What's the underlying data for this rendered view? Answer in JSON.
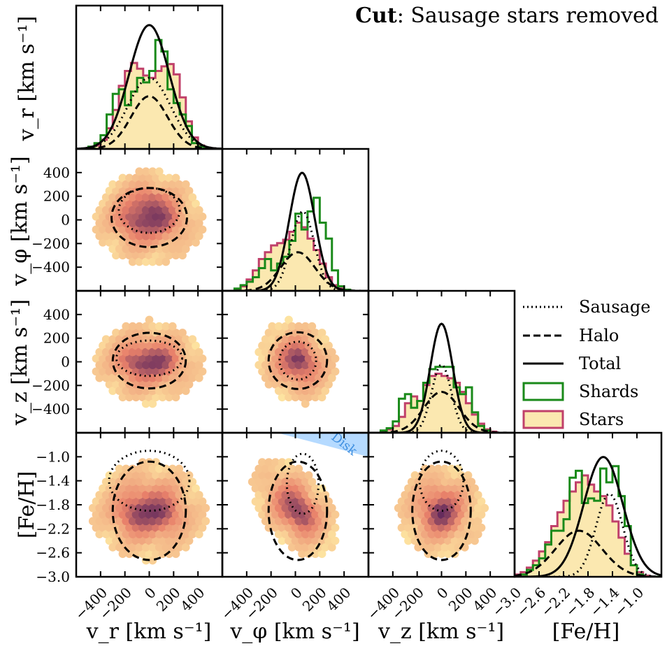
{
  "title": {
    "bold": "Cut",
    "rest": ": Sausage stars removed"
  },
  "axis_labels": {
    "vr": "v_r [km s⁻¹]",
    "vphi": "v_φ [km s⁻¹]",
    "vz": "v_z [km s⁻¹]",
    "feh": "[Fe/H]"
  },
  "legend": {
    "sausage": "Sausage",
    "halo": "Halo",
    "total": "Total",
    "shards": "Shards",
    "stars": "Stars"
  },
  "disk_label": "Disk",
  "colors": {
    "shards": "#1a8a1a",
    "stars_edge": "#c0406a",
    "stars_fill": "#fbe8b0",
    "disk": "#a8d4ff",
    "disk_text": "#3f8fe0",
    "density_low": "#fde3a0",
    "density_mid": "#e8806a",
    "density_high": "#4a1a5a"
  },
  "chart_data": {
    "type": "corner",
    "variables": [
      "vr",
      "vphi",
      "vz",
      "feh"
    ],
    "ranges": {
      "vr": [
        -600,
        600
      ],
      "vphi": [
        -600,
        600
      ],
      "vz": [
        -600,
        600
      ],
      "feh": [
        -3.0,
        -0.6
      ]
    },
    "ticks": {
      "vr": [
        -400,
        -200,
        0,
        200,
        400
      ],
      "vphi": [
        -400,
        -200,
        0,
        200,
        400
      ],
      "vz": [
        -400,
        -200,
        0,
        200,
        400
      ],
      "feh": [
        -3.0,
        -2.6,
        -2.2,
        -1.8,
        -1.4,
        -1.0
      ]
    },
    "tick_labels": {
      "vr": [
        "−400",
        "−200",
        "0",
        "200",
        "400"
      ],
      "vphi": [
        "−400",
        "−200",
        "0",
        "200",
        "400"
      ],
      "vz": [
        "−400",
        "−200",
        "0",
        "200",
        "400"
      ],
      "feh": [
        "−3.0",
        "−2.6",
        "−2.2",
        "−1.8",
        "−1.4",
        "−1.0"
      ]
    },
    "left_tick_labels": {
      "vphi": [
        "−400",
        "−200",
        "0",
        "200",
        "400"
      ],
      "vz": [
        "−400",
        "−200",
        "0",
        "200",
        "400"
      ],
      "feh": [
        "−3.0",
        "−2.6",
        "−2.2",
        "−1.8",
        "−1.4",
        "−1.0"
      ]
    },
    "marginals": {
      "vr": {
        "bin_edges": [
          -600,
          -550,
          -500,
          -450,
          -400,
          -350,
          -300,
          -250,
          -200,
          -150,
          -100,
          -50,
          0,
          50,
          100,
          150,
          200,
          250,
          300,
          350,
          400,
          450,
          500,
          550,
          600
        ],
        "stars": [
          0,
          0,
          1,
          3,
          8,
          18,
          34,
          55,
          68,
          75,
          70,
          64,
          62,
          68,
          72,
          74,
          65,
          45,
          24,
          10,
          3,
          1,
          0,
          0
        ],
        "shards": [
          0,
          0,
          2,
          5,
          12,
          30,
          48,
          52,
          38,
          50,
          62,
          58,
          68,
          95,
          85,
          52,
          40,
          30,
          20,
          5,
          2,
          0,
          0,
          0
        ],
        "sausage": {
          "amp": 62,
          "mu": 0,
          "sigma": 175
        },
        "halo": {
          "amp": 46,
          "mu": 0,
          "sigma": 150
        },
        "total": {
          "amp": 108,
          "mu": 0,
          "sigma": 165
        }
      },
      "vphi": {
        "bin_edges": [
          -600,
          -550,
          -500,
          -450,
          -400,
          -350,
          -300,
          -250,
          -200,
          -150,
          -100,
          -50,
          0,
          50,
          100,
          150,
          200,
          250,
          300,
          350,
          400,
          450,
          500,
          550,
          600
        ],
        "stars": [
          0,
          0,
          1,
          4,
          10,
          18,
          28,
          34,
          40,
          42,
          45,
          52,
          60,
          56,
          46,
          36,
          24,
          12,
          5,
          2,
          1,
          0,
          0,
          0
        ],
        "shards": [
          0,
          0,
          2,
          5,
          8,
          12,
          20,
          28,
          18,
          24,
          30,
          44,
          68,
          54,
          70,
          82,
          60,
          46,
          18,
          4,
          1,
          0,
          0,
          0
        ],
        "sausage": {
          "amp": 70,
          "mu": 60,
          "sigma": 95
        },
        "halo": {
          "amp": 34,
          "mu": 20,
          "sigma": 140
        },
        "total": {
          "amp": 104,
          "mu": 55,
          "sigma": 105
        }
      },
      "vz": {
        "bin_edges": [
          -600,
          -550,
          -500,
          -450,
          -400,
          -350,
          -300,
          -250,
          -200,
          -150,
          -100,
          -50,
          0,
          50,
          100,
          150,
          200,
          250,
          300,
          350,
          400,
          450,
          500,
          550,
          600
        ],
        "stars": [
          0,
          0,
          1,
          3,
          6,
          14,
          26,
          32,
          28,
          42,
          50,
          52,
          50,
          48,
          44,
          36,
          26,
          16,
          8,
          3,
          1,
          0,
          0,
          0
        ],
        "shards": [
          0,
          0,
          2,
          4,
          10,
          30,
          34,
          22,
          28,
          44,
          56,
          58,
          58,
          58,
          40,
          34,
          40,
          18,
          6,
          2,
          0,
          0,
          0,
          0
        ],
        "sausage": {
          "amp": 60,
          "mu": 0,
          "sigma": 80
        },
        "halo": {
          "amp": 36,
          "mu": 0,
          "sigma": 145
        },
        "total": {
          "amp": 96,
          "mu": 0,
          "sigma": 92
        }
      },
      "feh": {
        "bin_edges": [
          -3.0,
          -2.9,
          -2.8,
          -2.7,
          -2.6,
          -2.5,
          -2.4,
          -2.3,
          -2.2,
          -2.1,
          -2.0,
          -1.9,
          -1.8,
          -1.7,
          -1.6,
          -1.5,
          -1.4,
          -1.3,
          -1.2,
          -1.1,
          -1.0,
          -0.9,
          -0.8,
          -0.7,
          -0.6
        ],
        "stars": [
          2,
          4,
          8,
          14,
          22,
          30,
          44,
          56,
          66,
          74,
          82,
          88,
          80,
          74,
          70,
          62,
          48,
          34,
          20,
          10,
          4,
          1,
          0,
          0
        ],
        "shards": [
          0,
          2,
          6,
          10,
          16,
          28,
          40,
          40,
          50,
          86,
          92,
          64,
          68,
          66,
          94,
          82,
          96,
          70,
          44,
          10,
          2,
          0,
          0,
          0
        ],
        "sausage": {
          "amp": 72,
          "mu": -1.45,
          "sigma": 0.22
        },
        "halo": {
          "amp": 40,
          "mu": -1.95,
          "sigma": 0.38
        },
        "total": {
          "amp": 104,
          "mu": -1.55,
          "sigma": 0.32
        }
      }
    },
    "density": {
      "vr-vphi": {
        "mx": 0,
        "my": 20,
        "sx": 190,
        "sy": 170,
        "corr": 0.0,
        "clusters": [
          [
            -150,
            0
          ],
          [
            0,
            180
          ],
          [
            150,
            0
          ]
        ]
      },
      "vr-vz": {
        "mx": 0,
        "my": 0,
        "sx": 190,
        "sy": 150,
        "corr": 0.0,
        "clusters": [
          [
            -140,
            0
          ],
          [
            140,
            0
          ]
        ]
      },
      "vphi-vz": {
        "mx": 20,
        "my": 0,
        "sx": 140,
        "sy": 150,
        "corr": -0.15,
        "clusters": [
          [
            50,
            20
          ]
        ]
      },
      "vr-feh": {
        "mx": 0,
        "my": -1.9,
        "sx": 200,
        "sy": 0.35,
        "corr": 0.0,
        "clusters": [
          [
            -140,
            -1.95
          ],
          [
            140,
            -1.95
          ]
        ]
      },
      "vphi-feh": {
        "mx": 0,
        "my": -1.85,
        "sx": 150,
        "sy": 0.35,
        "corr": -0.45,
        "clusters": [
          [
            60,
            -1.95
          ]
        ]
      },
      "vz-feh": {
        "mx": 0,
        "my": -1.9,
        "sx": 150,
        "sy": 0.33,
        "corr": 0.0,
        "clusters": [
          [
            0,
            -1.95
          ]
        ]
      }
    },
    "contours": {
      "vr-vphi": {
        "sausage": {
          "cx": 0,
          "cy": 80,
          "rx": 250,
          "ry": 190
        },
        "halo": {
          "cx": 0,
          "cy": 20,
          "rx": 310,
          "ry": 250
        }
      },
      "vr-vz": {
        "sausage": {
          "cx": 0,
          "cy": 30,
          "rx": 270,
          "ry": 150
        },
        "halo": {
          "cx": 0,
          "cy": 10,
          "rx": 300,
          "ry": 235
        }
      },
      "vphi-vz": {
        "sausage": {
          "cx": 20,
          "cy": 10,
          "rx": 150,
          "ry": 160
        },
        "halo": {
          "cx": 20,
          "cy": 10,
          "rx": 240,
          "ry": 240
        }
      },
      "vr-feh": {
        "sausage": {
          "cx": 0,
          "cy": -1.4,
          "rx": 330,
          "ry": 0.5
        },
        "halo": {
          "cx": 0,
          "cy": -1.9,
          "rx": 300,
          "ry": 0.82
        }
      },
      "vphi-feh": {
        "sausage": {
          "cx": 60,
          "cy": -1.45,
          "rx": 130,
          "ry": 0.5
        },
        "halo": {
          "cx": 20,
          "cy": -1.9,
          "rx": 240,
          "ry": 0.82
        }
      },
      "vz-feh": {
        "sausage": {
          "cx": 0,
          "cy": -1.4,
          "rx": 180,
          "ry": 0.5
        },
        "halo": {
          "cx": 0,
          "cy": -1.9,
          "rx": 240,
          "ry": 0.82
        }
      }
    },
    "disk_region": {
      "corner_vphi": 600,
      "corner_feh": -0.6,
      "vphi_at_top": -150,
      "feh_at_right": -1.0
    }
  }
}
